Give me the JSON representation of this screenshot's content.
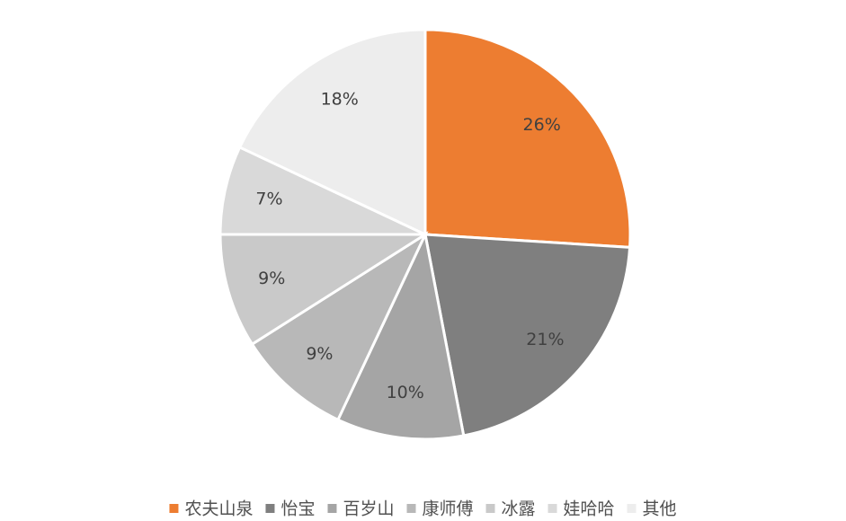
{
  "chart_data": {
    "type": "pie",
    "categories": [
      "农夫山泉",
      "怡宝",
      "百岁山",
      "康师傅",
      "冰露",
      "娃哈哈",
      "其他"
    ],
    "values": [
      26,
      21,
      10,
      9,
      9,
      7,
      18
    ],
    "value_labels": [
      "26%",
      "21%",
      "10%",
      "9%",
      "9%",
      "7%",
      "18%"
    ],
    "colors": [
      "#ed7d31",
      "#7f7f7f",
      "#a5a5a5",
      "#b8b8b8",
      "#c9c9c9",
      "#d9d9d9",
      "#ededed"
    ],
    "legend": "bottom"
  }
}
